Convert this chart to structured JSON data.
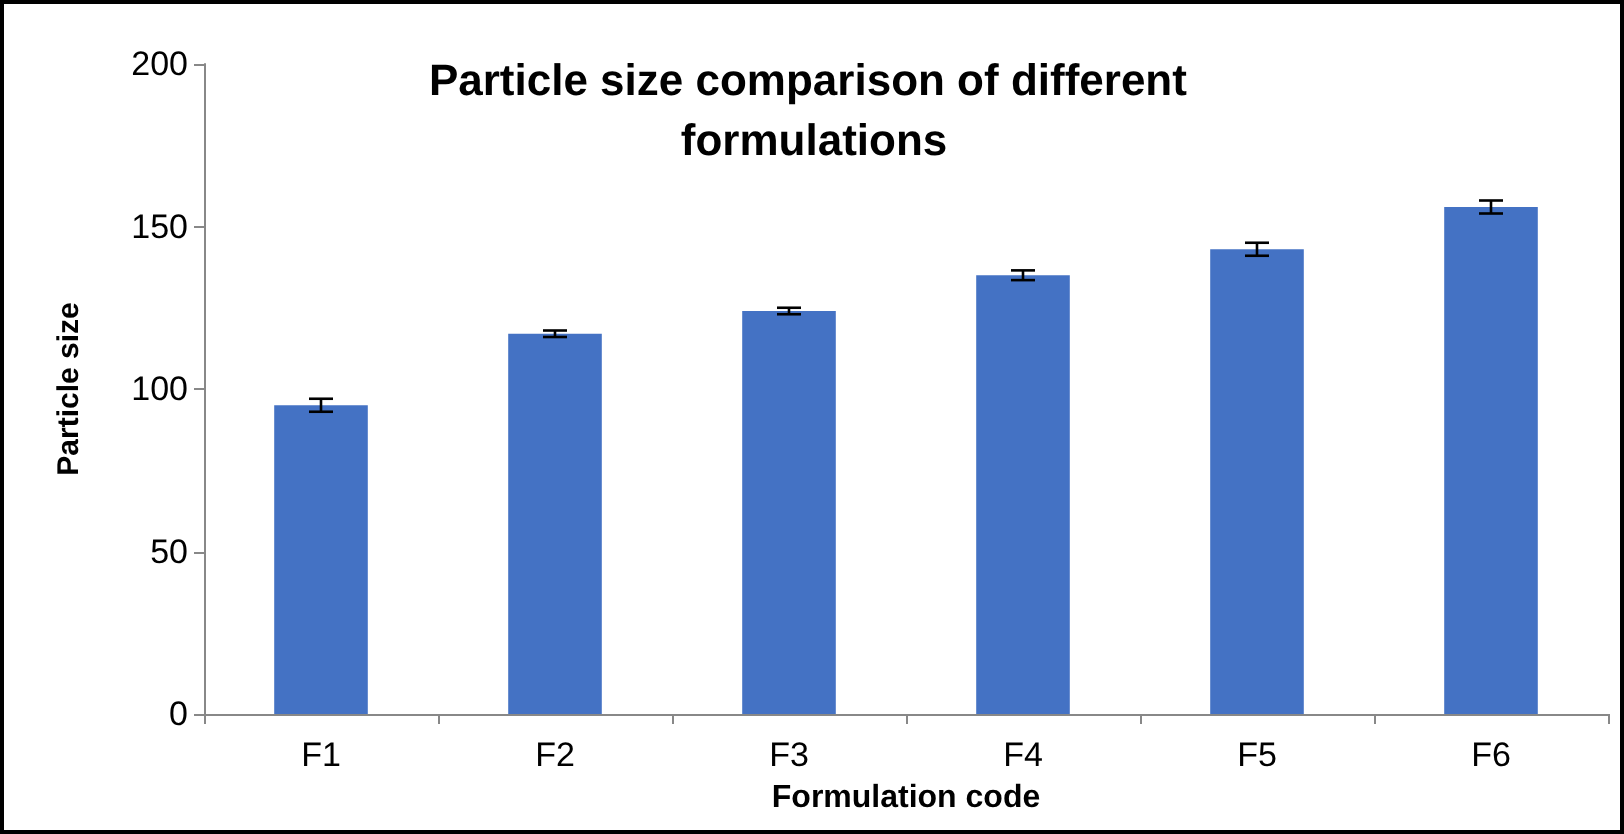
{
  "chart_data": {
    "type": "bar",
    "title": "Particle size comparison of different formulations",
    "xlabel": "Formulation code",
    "ylabel": "Particle size",
    "categories": [
      "F1",
      "F2",
      "F3",
      "F4",
      "F5",
      "F6"
    ],
    "values": [
      95,
      117,
      124,
      135,
      143,
      156
    ],
    "errors": [
      2,
      1,
      1,
      1.5,
      2,
      2
    ],
    "color": "#4472c4",
    "ylim": [
      0,
      200
    ],
    "yticks": [
      0,
      50,
      100,
      150,
      200
    ],
    "grid": false
  }
}
